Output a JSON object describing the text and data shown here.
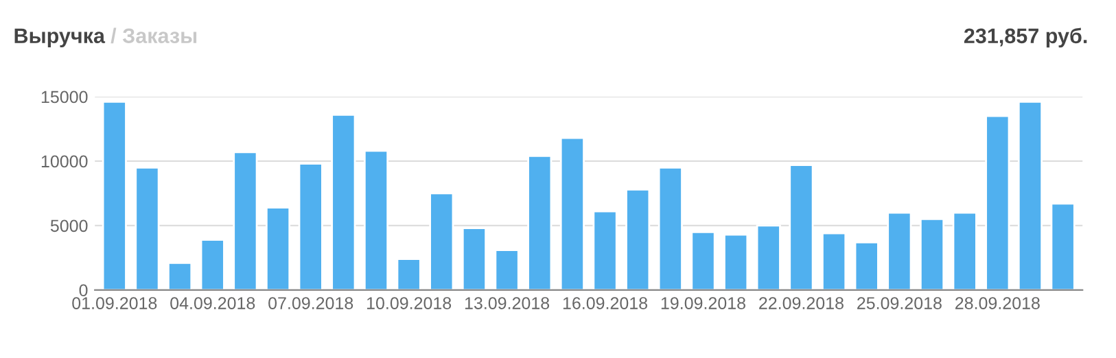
{
  "chart_data": {
    "type": "bar",
    "title": "Выручка",
    "subtitle": "/ Заказы",
    "annotations": [
      "231,857 руб."
    ],
    "categories": [
      "01.09.2018",
      null,
      null,
      "04.09.2018",
      null,
      null,
      "07.09.2018",
      null,
      null,
      "10.09.2018",
      null,
      null,
      "13.09.2018",
      null,
      null,
      "16.09.2018",
      null,
      null,
      "19.09.2018",
      null,
      null,
      "22.09.2018",
      null,
      null,
      "25.09.2018",
      null,
      null,
      "28.09.2018",
      null,
      null
    ],
    "values": [
      14600,
      9500,
      2100,
      3900,
      10700,
      6400,
      9800,
      13600,
      10800,
      2400,
      7500,
      4800,
      3100,
      10400,
      11800,
      6100,
      7800,
      9500,
      4500,
      4300,
      5000,
      9700,
      4400,
      3700,
      6000,
      5500,
      6000,
      13500,
      14600,
      6700
    ],
    "color": "#50b0ef",
    "ylim": [
      0,
      15000
    ],
    "yticks": [
      0,
      5000,
      10000,
      15000
    ],
    "grid": "y"
  }
}
